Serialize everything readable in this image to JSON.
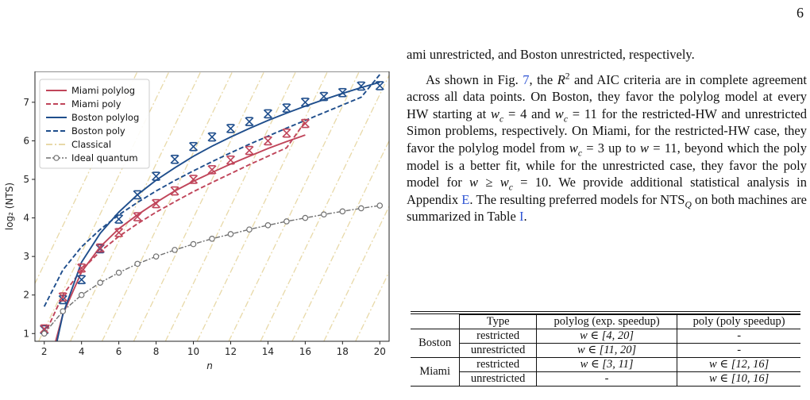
{
  "page_number": "6",
  "paragraph_intro": "ami unrestricted, and Boston unrestricted, respectively.",
  "paragraph_main": {
    "p1": "As shown in Fig. ",
    "fig_ref": "7",
    "p2": ", the ",
    "r2": "R",
    "r2_sup": "2",
    "p3": " and AIC criteria are in complete agreement across all data points. On Boston, they favor the polylog model at every HW starting at ",
    "wc1": "w",
    "wc1_sub": "c",
    "wc1_val": " = 4 and ",
    "wc2": "w",
    "wc2_sub": "c",
    "wc2_val": " = 11",
    "p4": " for the restricted-HW and unrestricted Simon problems, respectively. On Miami, for the restricted-HW case, they favor the polylog model from ",
    "wc3": "w",
    "wc3_sub": "c",
    "wc3_val": " = 3 up to ",
    "w1": "w",
    "w1_val": " = 11",
    "p5": ", beyond which the poly model is a better fit, while for the unrestricted case, they favor the poly model for ",
    "w2": "w",
    "w2_op": " ≥ ",
    "wc4": "w",
    "wc4_sub": "c",
    "wc4_val": " = 10",
    "p6": ". We provide additional statistical analysis in Appendix ",
    "app_ref": "E",
    "p7": ". The resulting preferred models for ",
    "nts": "NTS",
    "nts_sub": "Q",
    "p8": " on both machines are summarized in Table ",
    "tbl_ref": "I",
    "p9": "."
  },
  "table": {
    "headers": [
      "Type",
      "polylog (exp. speedup)",
      "poly (poly speedup)"
    ],
    "rows": [
      {
        "machine": "Boston",
        "type": "restricted",
        "polylog": "w ∈ [4, 20]",
        "poly": "-"
      },
      {
        "machine": "",
        "type": "unrestricted",
        "polylog": "w ∈ [11, 20]",
        "poly": "-"
      },
      {
        "machine": "Miami",
        "type": "restricted",
        "polylog": "w ∈ [3, 11]",
        "poly": "w ∈ [12, 16]"
      },
      {
        "machine": "",
        "type": "unrestricted",
        "polylog": "-",
        "poly": "w ∈ [10, 16]"
      }
    ]
  },
  "chart_data": {
    "type": "line",
    "xlabel": "n",
    "ylabel": "log₂ (NTS)",
    "xlim": [
      1.5,
      20.5
    ],
    "ylim": [
      0.8,
      7.8
    ],
    "xticks": [
      2,
      4,
      6,
      8,
      10,
      12,
      14,
      16,
      18,
      20
    ],
    "yticks": [
      1,
      2,
      3,
      4,
      5,
      6,
      7
    ],
    "grid": false,
    "legend_position": "top-left",
    "legend": [
      "Miami polylog",
      "Miami poly",
      "Boston polylog",
      "Boston poly",
      "Classical",
      "Ideal quantum"
    ],
    "colors": {
      "miami": "#c0455a",
      "boston": "#1f4e8c",
      "classical": "#e8d9a8",
      "ideal": "#707070"
    },
    "series": [
      {
        "name": "Boston data",
        "x": [
          2,
          3,
          4,
          5,
          6,
          7,
          8,
          9,
          10,
          11,
          12,
          13,
          14,
          15,
          16,
          17,
          18,
          19,
          20
        ],
        "y": [
          1.1,
          1.88,
          2.4,
          3.2,
          3.97,
          4.6,
          5.08,
          5.52,
          5.85,
          6.1,
          6.32,
          6.5,
          6.7,
          6.85,
          7.0,
          7.15,
          7.25,
          7.42,
          7.43
        ]
      },
      {
        "name": "Miami data",
        "x": [
          2,
          3,
          4,
          5,
          6,
          7,
          8,
          9,
          10,
          11,
          12,
          13,
          14,
          15,
          16
        ],
        "y": [
          1.12,
          1.95,
          2.7,
          3.22,
          3.62,
          4.03,
          4.37,
          4.7,
          5.0,
          5.25,
          5.5,
          5.75,
          6.0,
          6.2,
          6.45
        ]
      },
      {
        "name": "Ideal quantum",
        "x": [
          2,
          3,
          4,
          5,
          6,
          7,
          8,
          9,
          10,
          11,
          12,
          13,
          14,
          15,
          16,
          17,
          18,
          19,
          20
        ],
        "y": [
          1.0,
          1.58,
          2.0,
          2.32,
          2.58,
          2.81,
          3.0,
          3.17,
          3.32,
          3.46,
          3.58,
          3.7,
          3.81,
          3.91,
          4.0,
          4.09,
          4.17,
          4.25,
          4.32
        ]
      },
      {
        "name": "Miami polylog",
        "x": [
          2.5,
          3,
          4,
          5,
          6,
          7,
          8,
          9,
          10,
          11,
          12,
          13,
          14,
          15,
          16
        ],
        "y": [
          0.6,
          1.5,
          2.6,
          3.25,
          3.72,
          4.08,
          4.4,
          4.7,
          4.95,
          5.18,
          5.4,
          5.6,
          5.8,
          5.98,
          6.15
        ]
      },
      {
        "name": "Miami poly",
        "x": [
          2,
          3,
          4,
          5,
          6,
          7,
          8,
          9,
          10,
          11,
          12,
          13,
          14,
          15,
          16
        ],
        "y": [
          0.95,
          2.0,
          2.65,
          3.13,
          3.52,
          3.85,
          4.15,
          4.42,
          4.68,
          4.92,
          5.15,
          5.38,
          5.6,
          5.82,
          6.5
        ]
      },
      {
        "name": "Boston polylog",
        "x": [
          2.55,
          3,
          4,
          5,
          6,
          7,
          8,
          9,
          10,
          11,
          12,
          13,
          14,
          15,
          16,
          17,
          18,
          19,
          20
        ],
        "y": [
          0.5,
          1.5,
          2.85,
          3.6,
          4.15,
          4.6,
          4.98,
          5.3,
          5.6,
          5.86,
          6.1,
          6.32,
          6.53,
          6.72,
          6.9,
          7.07,
          7.23,
          7.38,
          7.52
        ]
      },
      {
        "name": "Boston poly",
        "x": [
          2,
          3,
          4,
          5,
          6,
          7,
          8,
          9,
          10,
          11,
          12,
          13,
          14,
          15,
          16,
          17,
          18,
          19,
          20
        ],
        "y": [
          1.7,
          2.65,
          3.25,
          3.7,
          4.08,
          4.4,
          4.7,
          4.97,
          5.22,
          5.46,
          5.69,
          5.91,
          6.12,
          6.33,
          6.53,
          6.73,
          6.93,
          7.13,
          7.72
        ]
      }
    ],
    "classical_lines_count": 12
  }
}
